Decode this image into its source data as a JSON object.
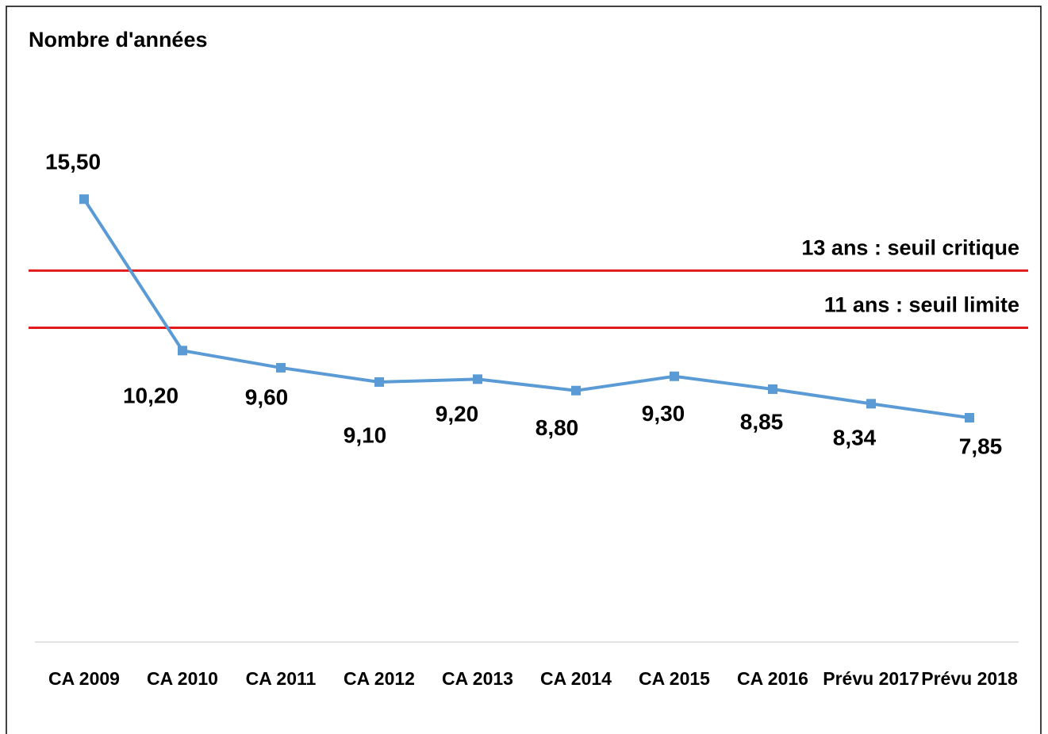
{
  "chart_data": {
    "type": "line",
    "title": "Nombre d'années",
    "categories": [
      "CA 2009",
      "CA 2010",
      "CA 2011",
      "CA 2012",
      "CA 2013",
      "CA 2014",
      "CA 2015",
      "CA 2016",
      "Prévu 2017",
      "Prévu 2018"
    ],
    "series": [
      {
        "name": "Nombre d'années",
        "color": "#5b9bd5",
        "values": [
          15.5,
          10.2,
          9.6,
          9.1,
          9.2,
          8.8,
          9.3,
          8.85,
          8.34,
          7.85
        ],
        "value_labels": [
          "15,50",
          "10,20",
          "9,60",
          "9,10",
          "9,20",
          "8,80",
          "9,30",
          "8,85",
          "8,34",
          "7,85"
        ]
      }
    ],
    "reference_lines": [
      {
        "value": 13,
        "label": "13 ans : seuil critique",
        "color": "#e31a1c"
      },
      {
        "value": 11,
        "label": "11 ans : seuil limite",
        "color": "#e31a1c"
      }
    ],
    "ylim": [
      0,
      20
    ]
  }
}
